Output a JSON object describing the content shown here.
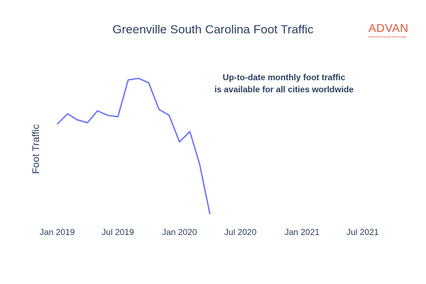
{
  "chart_data": {
    "type": "line",
    "title": "Greenville South Carolina Foot Traffic",
    "ylabel": "Foot Traffic",
    "xlabel": "",
    "annotation_lines": [
      "Up-to-date monthly foot traffic",
      "is available for all cities worldwide"
    ],
    "logo": {
      "name": "ADVAN",
      "tagline": "Research through Technology"
    },
    "line_color": "#636efa",
    "grid": false,
    "x_tick_labels": [
      {
        "date": "2019-01-01",
        "label": "Jan 2019"
      },
      {
        "date": "2019-07-01",
        "label": "Jul 2019"
      },
      {
        "date": "2020-01-01",
        "label": "Jan 2020"
      },
      {
        "date": "2020-07-01",
        "label": "Jul 2020"
      },
      {
        "date": "2021-01-01",
        "label": "Jan 2021"
      },
      {
        "date": "2021-07-01",
        "label": "Jul 2021"
      }
    ],
    "xlim": [
      "2018-12-01",
      "2021-09-01"
    ],
    "ylim": [
      0,
      100
    ],
    "series": [
      {
        "x": [
          "2019-01-01",
          "2019-02-01",
          "2019-03-01",
          "2019-04-01",
          "2019-05-01",
          "2019-06-01",
          "2019-07-01",
          "2019-08-01",
          "2019-09-01",
          "2019-10-01",
          "2019-11-01",
          "2019-12-01",
          "2020-01-01",
          "2020-02-01",
          "2020-03-01",
          "2020-04-01"
        ],
        "y": [
          64,
          71,
          67,
          65,
          73,
          70,
          69,
          94,
          95,
          92,
          74,
          70,
          52,
          59,
          37,
          3
        ]
      }
    ]
  }
}
